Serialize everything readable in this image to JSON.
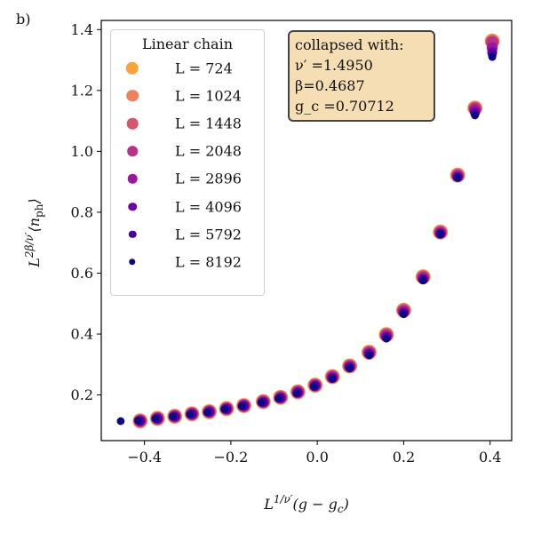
{
  "panel_label": "b)",
  "chart_data": {
    "type": "scatter",
    "title": "",
    "xlabel": "L^{1/ν'}(g − g_c)",
    "ylabel": "L^{2β/ν'}⟨n_ph⟩",
    "xlim": [
      -0.5,
      0.45
    ],
    "ylim": [
      0.05,
      1.43
    ],
    "xticks": [
      -0.4,
      -0.2,
      0.0,
      0.2,
      0.4
    ],
    "xtick_labels": [
      "−0.4",
      "−0.2",
      "0.0",
      "0.2",
      "0.4"
    ],
    "yticks": [
      0.2,
      0.4,
      0.6,
      0.8,
      1.0,
      1.2,
      1.4
    ],
    "ytick_labels": [
      "0.2",
      "0.4",
      "0.6",
      "0.8",
      "1.0",
      "1.2",
      "1.4"
    ],
    "grid": false,
    "legend": {
      "title": "Linear chain",
      "position": "top-left",
      "entries": [
        "L = 724",
        "L = 1024",
        "L = 1448",
        "L = 2048",
        "L = 2896",
        "L = 4096",
        "L = 5792",
        "L = 8192"
      ]
    },
    "annotation": {
      "lines": [
        "collapsed with:",
        "ν′ =1.4950",
        "β=0.4687",
        "g_c =0.70712"
      ]
    },
    "x": [
      -0.41,
      -0.37,
      -0.33,
      -0.29,
      -0.25,
      -0.21,
      -0.17,
      -0.125,
      -0.085,
      -0.045,
      -0.005,
      0.035,
      0.075,
      0.12,
      0.16,
      0.2,
      0.245,
      0.285,
      0.325,
      0.365,
      0.405
    ],
    "series": [
      {
        "name": "L = 724",
        "color": "#fba238",
        "y": [
          0.115,
          0.123,
          0.13,
          0.138,
          0.145,
          0.155,
          0.165,
          0.178,
          0.192,
          0.21,
          0.232,
          0.26,
          0.295,
          0.34,
          0.398,
          0.478,
          0.588,
          0.735,
          0.922,
          1.142,
          1.362
        ]
      },
      {
        "name": "L = 1024",
        "color": "#f0805e",
        "y": [
          0.115,
          0.123,
          0.13,
          0.138,
          0.145,
          0.155,
          0.165,
          0.178,
          0.192,
          0.21,
          0.232,
          0.26,
          0.295,
          0.34,
          0.398,
          0.478,
          0.588,
          0.735,
          0.922,
          1.142,
          1.362
        ]
      },
      {
        "name": "L = 1448",
        "color": "#d7566c",
        "y": [
          0.115,
          0.123,
          0.13,
          0.138,
          0.145,
          0.155,
          0.165,
          0.178,
          0.192,
          0.21,
          0.232,
          0.26,
          0.295,
          0.34,
          0.397,
          0.477,
          0.587,
          0.734,
          0.921,
          1.141,
          1.36
        ]
      },
      {
        "name": "L = 2048",
        "color": "#b83289",
        "y": [
          0.115,
          0.123,
          0.13,
          0.138,
          0.145,
          0.155,
          0.165,
          0.178,
          0.192,
          0.21,
          0.232,
          0.259,
          0.294,
          0.339,
          0.396,
          0.476,
          0.586,
          0.733,
          0.92,
          1.14,
          1.358
        ]
      },
      {
        "name": "L = 2896",
        "color": "#9c179e",
        "y": [
          0.115,
          0.123,
          0.13,
          0.138,
          0.145,
          0.155,
          0.165,
          0.177,
          0.191,
          0.209,
          0.231,
          0.258,
          0.293,
          0.337,
          0.393,
          0.473,
          0.583,
          0.732,
          0.918,
          1.135,
          1.34
        ]
      },
      {
        "name": "L = 4096",
        "color": "#7201a8",
        "y": [
          0.115,
          0.122,
          0.129,
          0.137,
          0.144,
          0.154,
          0.164,
          0.176,
          0.19,
          0.208,
          0.23,
          0.256,
          0.291,
          0.335,
          0.39,
          0.47,
          0.58,
          0.73,
          0.916,
          1.128,
          1.325
        ]
      },
      {
        "name": "L = 5792",
        "color": "#46039f",
        "y": [
          0.114,
          0.122,
          0.129,
          0.137,
          0.144,
          0.154,
          0.164,
          0.176,
          0.19,
          0.208,
          0.23,
          0.255,
          0.29,
          0.333,
          0.388,
          0.468,
          0.578,
          0.729,
          0.915,
          1.123,
          1.318
        ]
      },
      {
        "name": "L = 8192",
        "color": "#0d0887",
        "x": [
          -0.455,
          -0.415,
          -0.375,
          -0.335,
          -0.295,
          -0.255,
          -0.215,
          -0.175,
          -0.13,
          -0.09,
          -0.048,
          -0.008,
          0.035,
          0.075,
          0.12,
          0.16,
          0.2,
          0.245,
          0.285,
          0.325,
          0.365,
          0.405
        ],
        "y": [
          0.114,
          0.116,
          0.122,
          0.129,
          0.136,
          0.143,
          0.153,
          0.163,
          0.175,
          0.188,
          0.205,
          0.227,
          0.253,
          0.288,
          0.33,
          0.385,
          0.465,
          0.576,
          0.728,
          0.913,
          1.118,
          1.31
        ]
      }
    ]
  }
}
